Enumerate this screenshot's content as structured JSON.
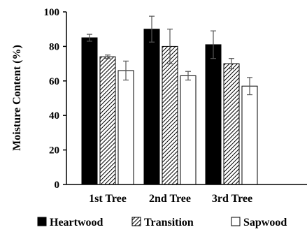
{
  "chart_data": {
    "type": "bar",
    "ylabel": "Moisture Content (%)",
    "xlabel": "",
    "ylim": [
      0,
      100
    ],
    "yticks": [
      "0",
      "20",
      "40",
      "60",
      "80",
      "100"
    ],
    "categories": [
      "1st Tree",
      "2nd Tree",
      "3rd Tree"
    ],
    "legend_position": "bottom",
    "grid": false,
    "series": [
      {
        "name": "Heartwood",
        "fill": "solid-black",
        "values": [
          85,
          90,
          81
        ],
        "errors": [
          2,
          7.5,
          8
        ]
      },
      {
        "name": "Transition",
        "fill": "diagonal-hatch",
        "values": [
          74,
          80,
          70
        ],
        "errors": [
          1,
          10,
          3
        ]
      },
      {
        "name": "Sapwood",
        "fill": "white",
        "values": [
          66,
          63,
          57
        ],
        "errors": [
          5.5,
          2.5,
          5
        ]
      }
    ]
  }
}
